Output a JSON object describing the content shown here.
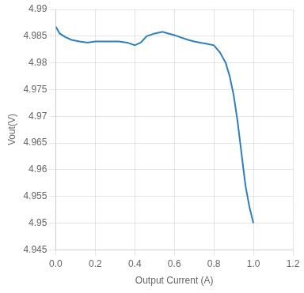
{
  "chart_data": {
    "type": "line",
    "x": [
      0.0,
      0.02,
      0.05,
      0.08,
      0.12,
      0.16,
      0.2,
      0.24,
      0.28,
      0.32,
      0.36,
      0.4,
      0.43,
      0.46,
      0.5,
      0.54,
      0.57,
      0.6,
      0.63,
      0.67,
      0.7,
      0.73,
      0.76,
      0.8,
      0.83,
      0.86,
      0.88,
      0.9,
      0.92,
      0.94,
      0.96,
      0.98,
      1.0
    ],
    "values": [
      4.9868,
      4.9855,
      4.9848,
      4.9843,
      4.984,
      4.9838,
      4.984,
      4.984,
      4.984,
      4.984,
      4.9838,
      4.9833,
      4.9838,
      4.985,
      4.9855,
      4.9858,
      4.9855,
      4.9852,
      4.9848,
      4.9843,
      4.984,
      4.9838,
      4.9836,
      4.9833,
      4.982,
      4.98,
      4.9775,
      4.974,
      4.969,
      4.963,
      4.957,
      4.953,
      4.95
    ],
    "color": "#2a7fc1",
    "xlim": [
      0.0,
      1.2
    ],
    "ylim": [
      4.945,
      4.99
    ],
    "xticks": [
      {
        "value": 0.0,
        "label": "0.0"
      },
      0.2,
      0.4,
      0.6,
      0.8,
      {
        "value": 1.0,
        "label": "1.0"
      },
      1.2
    ],
    "yticks": [
      4.945,
      4.95,
      4.955,
      4.96,
      4.965,
      4.97,
      4.975,
      4.98,
      4.985,
      4.99
    ],
    "xlabel": "Output Current (A)",
    "ylabel": "Vout(V)",
    "grid": true
  }
}
